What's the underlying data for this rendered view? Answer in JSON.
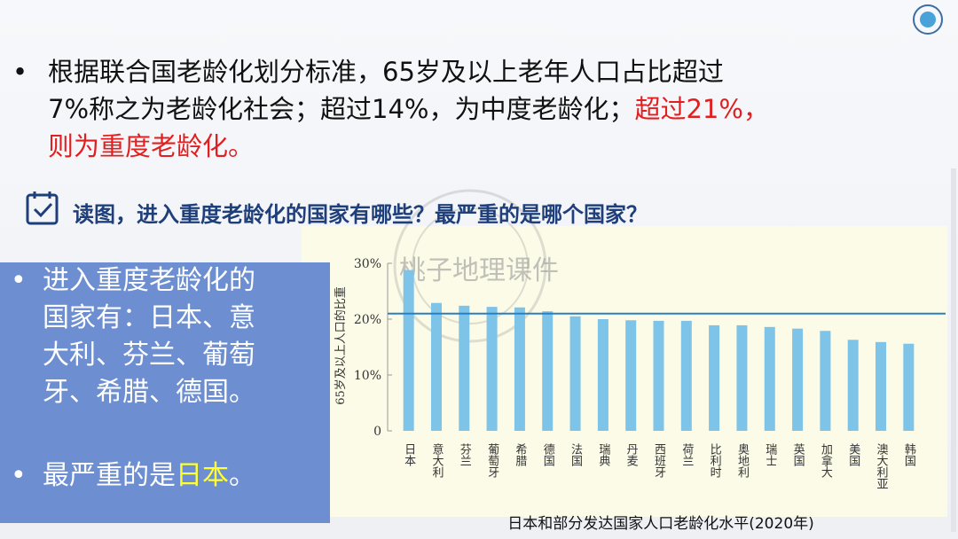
{
  "bullet": "•",
  "intro": {
    "line1": "根据联合国老龄化划分标准，65岁及以上老年人口占比超过",
    "line2": "7%称之为老龄化社会；超过14%，为中度老龄化；",
    "line2_highlight": "超过21%，",
    "line3_highlight": "则为重度老龄化。"
  },
  "question": "读图，进入重度老龄化的国家有哪些？最严重的是哪个国家？",
  "answer": {
    "lines": [
      "进入重度老龄化的",
      "国家有：日本、意",
      "大利、芬兰、葡萄",
      "牙、希腊、德国。"
    ],
    "conclusion": "最严重的是",
    "highlight": "日本",
    "end": "。"
  },
  "watermark": "桃子地理课件",
  "chart_data": {
    "type": "bar",
    "caption": "日本和部分发达国家人口老龄化水平(2020年)",
    "y_label": "65岁及以上人口的比重",
    "categories": [
      "日本",
      "意大利",
      "芬兰",
      "葡萄牙",
      "希腊",
      "德国",
      "法国",
      "瑞典",
      "丹麦",
      "西班牙",
      "荷兰",
      "比利时",
      "奥地利",
      "瑞士",
      "英国",
      "加拿大",
      "美国",
      "澳大利亚",
      "韩国"
    ],
    "values": [
      28.8,
      22.9,
      22.4,
      22.2,
      22.1,
      21.4,
      20.5,
      20.0,
      19.8,
      19.7,
      19.7,
      18.9,
      18.9,
      18.6,
      18.3,
      17.9,
      16.3,
      15.9,
      15.6
    ],
    "color": "#7ec3e8",
    "reference_line": 21,
    "reference_color": "#2a7fc4",
    "ylim": [
      0,
      30
    ],
    "yticks": [
      0,
      {
        "value": 10,
        "label": "10%"
      },
      {
        "value": 20,
        "label": "20%"
      },
      {
        "value": 30,
        "label": "30%"
      }
    ],
    "grid": false
  }
}
